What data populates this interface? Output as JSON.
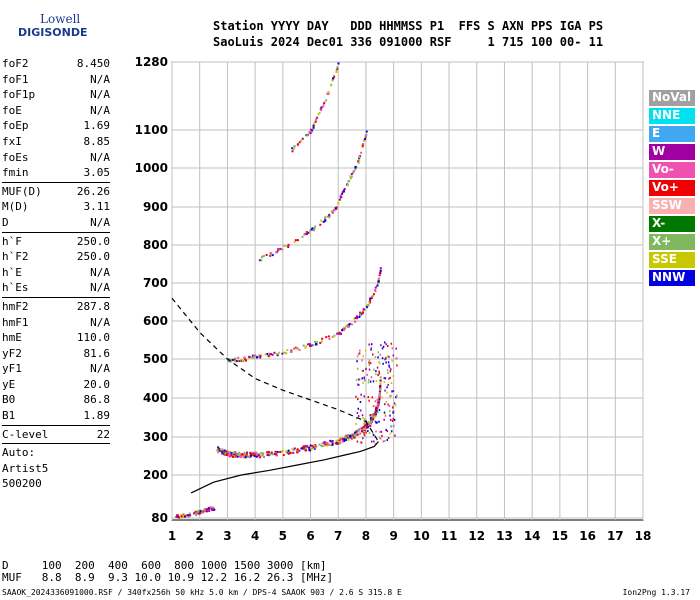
{
  "logo": {
    "line1": "Lowell",
    "line2": "DIGISONDE"
  },
  "header": {
    "line1": "Station YYYY DAY   DDD HHMMSS P1  FFS S AXN PPS IGA PS",
    "line2": "SaoLuis 2024 Dec01 336 091000 RSF     1 715 100 00- 11"
  },
  "params": [
    {
      "k": "foF2",
      "v": "8.450"
    },
    {
      "k": "foF1",
      "v": "N/A"
    },
    {
      "k": "foF1p",
      "v": "N/A"
    },
    {
      "k": "foE",
      "v": "N/A"
    },
    {
      "k": "foEp",
      "v": "1.69"
    },
    {
      "k": "fxI",
      "v": "8.85"
    },
    {
      "k": "foEs",
      "v": "N/A"
    },
    {
      "k": "fmin",
      "v": "3.05"
    },
    {
      "sep": true
    },
    {
      "k": "MUF(D)",
      "v": "26.26"
    },
    {
      "k": "M(D)",
      "v": "3.11"
    },
    {
      "k": "D",
      "v": "N/A"
    },
    {
      "sep": true
    },
    {
      "k": "h`F",
      "v": "250.0"
    },
    {
      "k": "h`F2",
      "v": "250.0"
    },
    {
      "k": "h`E",
      "v": "N/A"
    },
    {
      "k": "h`Es",
      "v": "N/A"
    },
    {
      "sep": true
    },
    {
      "k": "hmF2",
      "v": "287.8"
    },
    {
      "k": "hmF1",
      "v": "N/A"
    },
    {
      "k": "hmE",
      "v": "110.0"
    },
    {
      "k": "yF2",
      "v": "81.6"
    },
    {
      "k": "yF1",
      "v": "N/A"
    },
    {
      "k": "yE",
      "v": "20.0"
    },
    {
      "k": "B0",
      "v": "86.8"
    },
    {
      "k": "B1",
      "v": "1.89"
    },
    {
      "sep": true
    },
    {
      "k": "C-level",
      "v": "22"
    },
    {
      "sep": true
    },
    {
      "k": "Auto:",
      "v": ""
    },
    {
      "k": "Artist5",
      "v": ""
    },
    {
      "k": "500200",
      "v": ""
    }
  ],
  "legend": [
    {
      "label": "NoVal",
      "color": "#a0a0a0"
    },
    {
      "label": "NNE",
      "color": "#00e0f0"
    },
    {
      "label": "E",
      "color": "#40a8f0"
    },
    {
      "label": "W",
      "color": "#a000a0"
    },
    {
      "label": "Vo-",
      "color": "#f050b0"
    },
    {
      "label": "Vo+",
      "color": "#f00000"
    },
    {
      "label": "SSW",
      "color": "#f8b0b0"
    },
    {
      "label": "X-",
      "color": "#007800"
    },
    {
      "label": "X+",
      "color": "#80b860"
    },
    {
      "label": "SSE",
      "color": "#c8c800"
    },
    {
      "label": "NNW",
      "color": "#0000e0"
    }
  ],
  "muf_table": {
    "d_line": "D     100  200  400  600  800 1000 1500 3000 [km]",
    "muf_line": "MUF   8.8  8.9  9.3 10.0 10.9 12.2 16.2 26.3 [MHz]"
  },
  "footer": {
    "left": "SAAOK_2024336091000.RSF / 340fx256h 50 kHz 5.0 km / DPS-4 SAAOK 903 / 2.6 S 315.8 E",
    "right": "Ion2Png 1.3.17"
  },
  "chart_data": {
    "type": "scatter",
    "title": "",
    "xlabel": "",
    "ylabel": "",
    "xlim": [
      1,
      18
    ],
    "ylim": [
      80,
      1280
    ],
    "x_ticks": [
      1,
      2,
      3,
      4,
      5,
      6,
      7,
      8,
      9,
      10,
      11,
      12,
      13,
      14,
      15,
      16,
      17,
      18
    ],
    "y_ticks": [
      80,
      200,
      300,
      400,
      500,
      600,
      700,
      800,
      900,
      1000,
      1100,
      1280
    ],
    "traces": [
      {
        "name": "F2 trace",
        "points": [
          [
            2.6,
            270
          ],
          [
            3,
            258
          ],
          [
            3.5,
            255
          ],
          [
            4,
            255
          ],
          [
            5,
            262
          ],
          [
            6,
            275
          ],
          [
            7,
            292
          ],
          [
            7.5,
            305
          ],
          [
            8,
            330
          ],
          [
            8.3,
            360
          ],
          [
            8.45,
            400
          ],
          [
            8.5,
            450
          ]
        ]
      },
      {
        "name": "2F2 trace",
        "points": [
          [
            3,
            500
          ],
          [
            3.5,
            502
          ],
          [
            4,
            508
          ],
          [
            5,
            520
          ],
          [
            6,
            540
          ],
          [
            7,
            570
          ],
          [
            7.5,
            600
          ],
          [
            8,
            640
          ],
          [
            8.4,
            700
          ],
          [
            8.5,
            740
          ]
        ]
      },
      {
        "name": "3F2 trace",
        "points": [
          [
            4,
            760
          ],
          [
            5,
            795
          ],
          [
            6,
            840
          ],
          [
            6.8,
            890
          ],
          [
            7.3,
            960
          ],
          [
            7.7,
            1020
          ],
          [
            8,
            1100
          ]
        ]
      },
      {
        "name": "4F2 trace",
        "points": [
          [
            5.3,
            1050
          ],
          [
            6,
            1100
          ],
          [
            6.5,
            1180
          ],
          [
            7,
            1280
          ]
        ]
      },
      {
        "name": "Es trace",
        "points": [
          [
            1.1,
            86
          ],
          [
            1.5,
            90
          ],
          [
            1.9,
            98
          ],
          [
            2.2,
            105
          ],
          [
            2.5,
            110
          ]
        ]
      }
    ],
    "profile": [
      [
        1.69,
        150
      ],
      [
        2.5,
        180
      ],
      [
        3.5,
        200
      ],
      [
        4.5,
        212
      ],
      [
        5.5,
        226
      ],
      [
        6.5,
        240
      ],
      [
        7.2,
        252
      ],
      [
        7.8,
        262
      ],
      [
        8.3,
        275
      ],
      [
        8.45,
        287.8
      ]
    ],
    "dashed_profile": [
      [
        1,
        660
      ],
      [
        2,
        570
      ],
      [
        3,
        500
      ],
      [
        4,
        450
      ],
      [
        5,
        420
      ],
      [
        6,
        395
      ],
      [
        7,
        370
      ],
      [
        8,
        340
      ],
      [
        8.45,
        287.8
      ]
    ]
  }
}
